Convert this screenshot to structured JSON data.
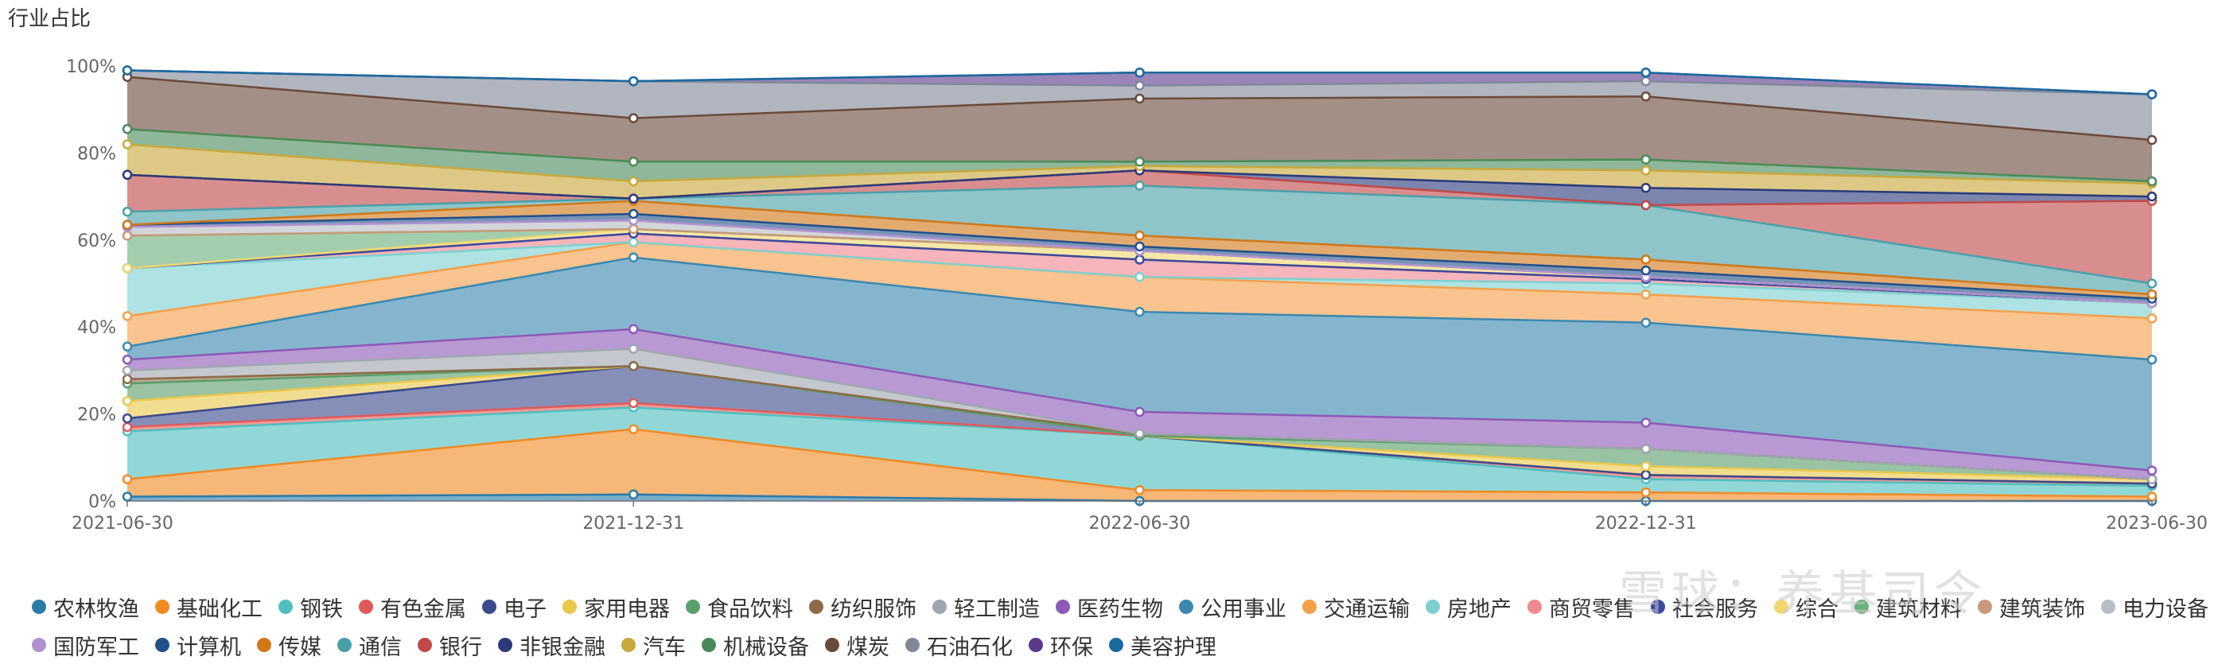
{
  "chart_data": {
    "type": "area",
    "stacked": true,
    "title": "行业占比",
    "x": [
      "2021-06-30",
      "2021-12-31",
      "2022-06-30",
      "2022-12-31",
      "2023-06-30"
    ],
    "ylim": [
      0,
      100
    ],
    "yticks": [
      "0%",
      "20%",
      "40%",
      "60%",
      "80%",
      "100%"
    ],
    "grid": false,
    "legend_position": "bottom",
    "series": [
      {
        "name": "农林牧渔",
        "color": "#2a7aa8",
        "values": [
          1.0,
          1.5,
          0.0,
          0.0,
          0.0
        ]
      },
      {
        "name": "基础化工",
        "color": "#f08a24",
        "values": [
          4.0,
          15.0,
          2.5,
          2.0,
          1.0
        ]
      },
      {
        "name": "钢铁",
        "color": "#4fbfbf",
        "values": [
          11.0,
          5.0,
          12.5,
          3.0,
          2.5
        ]
      },
      {
        "name": "有色金属",
        "color": "#e05a5a",
        "values": [
          1.0,
          1.0,
          0.0,
          1.0,
          0.5
        ]
      },
      {
        "name": "电子",
        "color": "#3b4a8c",
        "values": [
          2.0,
          8.5,
          0.0,
          0.0,
          0.0
        ]
      },
      {
        "name": "家用电器",
        "color": "#e8c84a",
        "values": [
          4.0,
          0.0,
          0.0,
          2.0,
          1.0
        ]
      },
      {
        "name": "食品饮料",
        "color": "#5a9e6a",
        "values": [
          4.0,
          0.0,
          0.0,
          4.0,
          0.0
        ]
      },
      {
        "name": "纺织服饰",
        "color": "#8c6a4a",
        "values": [
          1.0,
          0.0,
          0.5,
          0.0,
          0.0
        ]
      },
      {
        "name": "轻工制造",
        "color": "#a0a6b0",
        "values": [
          2.0,
          4.0,
          0.0,
          0.0,
          0.0
        ]
      },
      {
        "name": "医药生物",
        "color": "#8c5ab8",
        "values": [
          2.5,
          4.5,
          5.0,
          6.0,
          2.0
        ]
      },
      {
        "name": "公用事业",
        "color": "#3a88b0",
        "values": [
          3.0,
          16.5,
          23.0,
          23.0,
          25.5
        ]
      },
      {
        "name": "交通运输",
        "color": "#f5a04a",
        "values": [
          7.0,
          3.5,
          8.0,
          6.5,
          9.5
        ]
      },
      {
        "name": "房地产",
        "color": "#7ed0d0",
        "values": [
          11.0,
          0.0,
          0.0,
          2.5,
          3.5
        ]
      },
      {
        "name": "商贸零售",
        "color": "#f08890",
        "values": [
          0.0,
          2.0,
          4.0,
          1.0,
          0.0
        ]
      },
      {
        "name": "社会服务",
        "color": "#3b4a9c",
        "values": [
          0.0,
          0.0,
          0.0,
          0.0,
          0.0
        ]
      },
      {
        "name": "综合",
        "color": "#f0d870",
        "values": [
          0.0,
          1.0,
          2.0,
          0.5,
          0.0
        ]
      },
      {
        "name": "建筑材料",
        "color": "#6ab07a",
        "values": [
          7.5,
          0.0,
          0.0,
          0.0,
          0.0
        ]
      },
      {
        "name": "建筑装饰",
        "color": "#c89a7a",
        "values": [
          0.0,
          0.0,
          0.0,
          0.0,
          0.0
        ]
      },
      {
        "name": "电力设备",
        "color": "#b8bcc4",
        "values": [
          2.0,
          2.0,
          0.0,
          0.0,
          0.0
        ]
      },
      {
        "name": "国防军工",
        "color": "#b090d0",
        "values": [
          0.0,
          0.0,
          0.0,
          0.0,
          0.0
        ]
      },
      {
        "name": "计算机",
        "color": "#22508a",
        "values": [
          0.5,
          1.5,
          1.0,
          1.5,
          1.0
        ]
      },
      {
        "name": "传媒",
        "color": "#d07818",
        "values": [
          0.0,
          3.0,
          2.5,
          2.5,
          1.0
        ]
      },
      {
        "name": "通信",
        "color": "#4aa0a8",
        "values": [
          3.0,
          0.5,
          11.5,
          12.5,
          2.5
        ]
      },
      {
        "name": "银行",
        "color": "#c04848",
        "values": [
          8.5,
          0.0,
          3.5,
          0.0,
          19.0
        ]
      },
      {
        "name": "非银金融",
        "color": "#2a3a7a",
        "values": [
          0.0,
          0.0,
          0.0,
          4.0,
          1.0
        ]
      },
      {
        "name": "汽车",
        "color": "#c8a83a",
        "values": [
          7.0,
          4.0,
          1.0,
          4.0,
          3.0
        ]
      },
      {
        "name": "机械设备",
        "color": "#4a8a5a",
        "values": [
          3.5,
          4.5,
          1.0,
          2.5,
          0.5
        ]
      },
      {
        "name": "煤炭",
        "color": "#6a4a3a",
        "values": [
          12.0,
          10.0,
          14.5,
          14.5,
          9.5
        ]
      },
      {
        "name": "石油石化",
        "color": "#808898",
        "values": [
          1.5,
          8.5,
          3.0,
          3.5,
          10.5
        ]
      },
      {
        "name": "环保",
        "color": "#5a3a8a",
        "values": [
          0.0,
          0.0,
          3.0,
          2.0,
          0.0
        ]
      },
      {
        "name": "美容护理",
        "color": "#1a6aa0",
        "values": [
          0.0,
          0.0,
          0.0,
          0.0,
          0.0
        ]
      }
    ]
  },
  "watermark": "雪球：养基司令"
}
